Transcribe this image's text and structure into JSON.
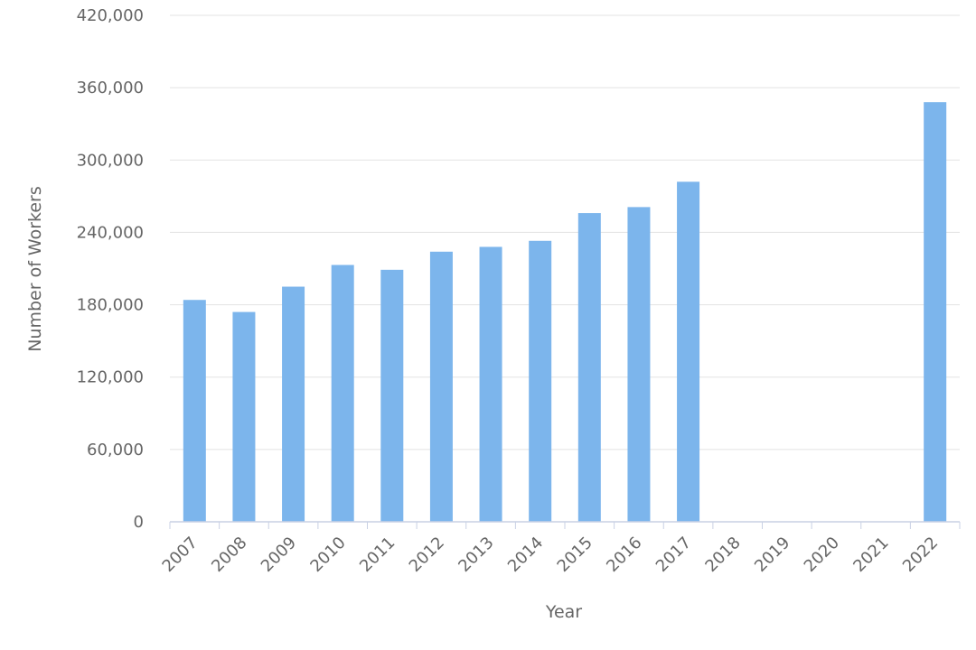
{
  "chart_data": {
    "type": "bar",
    "xlabel": "Year",
    "ylabel": "Number of Workers",
    "categories": [
      "2007",
      "2008",
      "2009",
      "2010",
      "2011",
      "2012",
      "2013",
      "2014",
      "2015",
      "2016",
      "2017",
      "2018",
      "2019",
      "2020",
      "2021",
      "2022"
    ],
    "values": [
      184000,
      174000,
      195000,
      213000,
      209000,
      224000,
      228000,
      233000,
      256000,
      261000,
      282000,
      0,
      0,
      0,
      0,
      348000
    ],
    "ylim": [
      0,
      420000
    ],
    "yticks": [
      0,
      60000,
      120000,
      180000,
      240000,
      300000,
      360000,
      420000
    ],
    "ytick_labels": [
      "0",
      "60,000",
      "120,000",
      "180,000",
      "240,000",
      "300,000",
      "360,000",
      "420,000"
    ],
    "bar_color": "#7cb5ec",
    "grid": true,
    "legend": false
  }
}
